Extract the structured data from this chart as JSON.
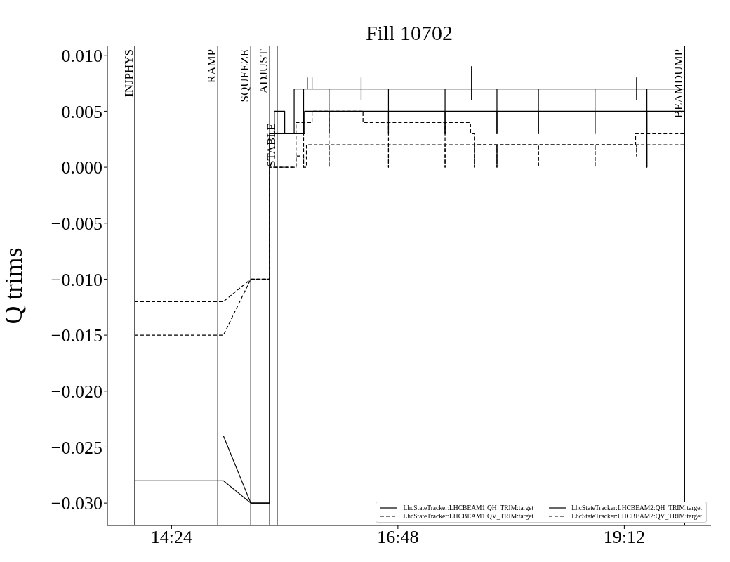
{
  "chart_data": {
    "type": "line",
    "title": "Fill 10702",
    "ylabel": "Q trims",
    "xlim": [
      13.72,
      20.12
    ],
    "ylim": [
      -0.032,
      0.0108
    ],
    "xticks": [
      {
        "value": 14.4,
        "label": "14:24"
      },
      {
        "value": 16.8,
        "label": "16:48"
      },
      {
        "value": 19.2,
        "label": "19:12"
      }
    ],
    "yticks": [
      {
        "value": 0.01,
        "label": "0.010"
      },
      {
        "value": 0.005,
        "label": "0.005"
      },
      {
        "value": 0,
        "label": "0.000"
      },
      {
        "value": -0.005,
        "label": "−0.005"
      },
      {
        "value": -0.01,
        "label": "−0.010"
      },
      {
        "value": -0.015,
        "label": "−0.015"
      },
      {
        "value": -0.02,
        "label": "−0.020"
      },
      {
        "value": -0.025,
        "label": "−0.025"
      },
      {
        "value": -0.03,
        "label": "−0.030"
      }
    ],
    "grid": false,
    "legend": "bottom right",
    "marker": "none",
    "ref_lines": [
      {
        "axis": "x",
        "value": 14.01,
        "label": "INJPHYS",
        "color": "#000000"
      },
      {
        "axis": "x",
        "value": 14.89,
        "label": "RAMP",
        "color": "#000000"
      },
      {
        "axis": "x",
        "value": 15.24,
        "label": "SQUEEZE",
        "color": "#000000"
      },
      {
        "axis": "x",
        "value": 15.44,
        "label": "ADJUST",
        "color": "#000000"
      },
      {
        "axis": "x",
        "value": 15.52,
        "label": "STABLE",
        "color": "#000000"
      },
      {
        "axis": "x",
        "value": 19.84,
        "label": "BEAMDUMP",
        "color": "#000000"
      }
    ],
    "series": [
      {
        "name": "LhcStateTracker:LHCBEAM1:QH_TRIM:target",
        "color": "#000000",
        "line_style": "solid",
        "x": [
          14.01,
          14.95,
          15.24,
          15.44,
          15.44,
          15.49,
          15.49,
          15.6,
          15.6,
          15.7,
          15.7,
          15.8,
          15.8,
          15.8,
          15.84,
          15.84,
          15.84,
          15.89,
          15.89,
          15.89,
          16.07,
          16.07,
          16.07,
          16.41,
          16.41,
          16.41,
          16.41,
          16.7,
          16.7,
          16.7,
          17.3,
          17.3,
          17.3,
          17.58,
          17.58,
          17.58,
          17.58,
          17.85,
          17.85,
          17.85,
          18.29,
          18.29,
          18.29,
          18.89,
          18.89,
          18.89,
          19.33,
          19.33,
          19.33,
          19.33,
          19.44,
          19.44,
          19.44,
          19.84
        ],
        "values": [
          -0.024,
          -0.024,
          -0.03,
          -0.03,
          0.003,
          0.003,
          0.005,
          0.005,
          0.003,
          0.003,
          0.007,
          0.007,
          0.003,
          0.007,
          0.007,
          0.008,
          0.007,
          0.007,
          0.008,
          0.007,
          0.007,
          0.003,
          0.007,
          0.007,
          0.008,
          0.006,
          0.007,
          0.007,
          0.003,
          0.007,
          0.007,
          0.003,
          0.007,
          0.007,
          0.009,
          0.006,
          0.007,
          0.007,
          0.003,
          0.007,
          0.007,
          0.003,
          0.007,
          0.007,
          0.003,
          0.007,
          0.007,
          0.008,
          0.006,
          0.007,
          0.007,
          0.003,
          0.007,
          0.007
        ]
      },
      {
        "name": "LhcStateTracker:LHCBEAM1:QV_TRIM:target",
        "color": "#000000",
        "line_style": "dashed",
        "x": [
          14.01,
          14.95,
          15.24,
          15.44,
          15.44,
          15.72,
          15.72,
          15.8,
          15.8,
          15.8,
          15.89,
          15.89,
          16.07,
          16.07,
          16.07,
          16.43,
          16.43,
          16.7,
          16.7,
          16.7,
          17.3,
          17.3,
          17.3,
          17.57,
          17.57,
          17.61,
          17.61,
          17.85,
          17.85,
          17.85,
          18.29,
          18.29,
          18.29,
          18.89,
          18.89,
          18.89,
          19.32,
          19.32,
          19.44,
          19.44,
          19.44,
          19.84
        ],
        "values": [
          -0.012,
          -0.012,
          -0.01,
          -0.01,
          0,
          0,
          0.004,
          0.004,
          0,
          0.004,
          0.004,
          0.005,
          0.005,
          0,
          0.005,
          0.005,
          0.004,
          0.004,
          0,
          0.004,
          0.004,
          0,
          0.004,
          0.004,
          0.003,
          0.003,
          0.002,
          0.002,
          0,
          0.002,
          0.002,
          0,
          0.002,
          0.002,
          0,
          0.002,
          0.002,
          0.003,
          0.003,
          0,
          0.003,
          0.003
        ]
      },
      {
        "name": "LhcStateTracker:LHCBEAM2:QH_TRIM:target",
        "color": "#000000",
        "line_style": "solid",
        "x": [
          14.01,
          14.95,
          15.24,
          15.44,
          15.44,
          15.81,
          15.81,
          16.07,
          16.07,
          16.07,
          16.7,
          16.7,
          16.7,
          17.3,
          17.3,
          17.3,
          17.85,
          17.85,
          17.85,
          18.29,
          18.29,
          18.29,
          18.89,
          18.89,
          18.89,
          19.44,
          19.44,
          19.44,
          19.84
        ],
        "values": [
          -0.028,
          -0.028,
          -0.03,
          -0.03,
          0.003,
          0.003,
          0.005,
          0.005,
          0.003,
          0.005,
          0.005,
          0.003,
          0.005,
          0.005,
          0.003,
          0.005,
          0.005,
          0.003,
          0.005,
          0.005,
          0.003,
          0.005,
          0.005,
          0.003,
          0.005,
          0.005,
          0.003,
          0.005,
          0.005
        ]
      },
      {
        "name": "LhcStateTracker:LHCBEAM2:QV_TRIM:target",
        "color": "#000000",
        "line_style": "dashed",
        "x": [
          14.01,
          14.95,
          15.24,
          15.44,
          15.44,
          15.72,
          15.72,
          15.8,
          15.8,
          15.83,
          15.83,
          16.07,
          16.07,
          16.07,
          16.7,
          16.7,
          16.7,
          17.3,
          17.3,
          17.3,
          17.61,
          17.61,
          17.61,
          17.85,
          17.85,
          17.85,
          18.29,
          18.29,
          18.29,
          18.89,
          18.89,
          18.89,
          19.33,
          19.33,
          19.33,
          19.44,
          19.44,
          19.44,
          19.84
        ],
        "values": [
          -0.015,
          -0.015,
          -0.01,
          -0.01,
          0,
          0,
          0.001,
          0.001,
          0,
          0,
          0.002,
          0.002,
          0,
          0.002,
          0.002,
          0,
          0.002,
          0.002,
          0,
          0.002,
          0.002,
          0,
          0.002,
          0.002,
          0,
          0.002,
          0.002,
          0,
          0.002,
          0.002,
          0,
          0.002,
          0.002,
          0.001,
          0.002,
          0.002,
          0,
          0.002,
          0.002
        ]
      }
    ]
  }
}
